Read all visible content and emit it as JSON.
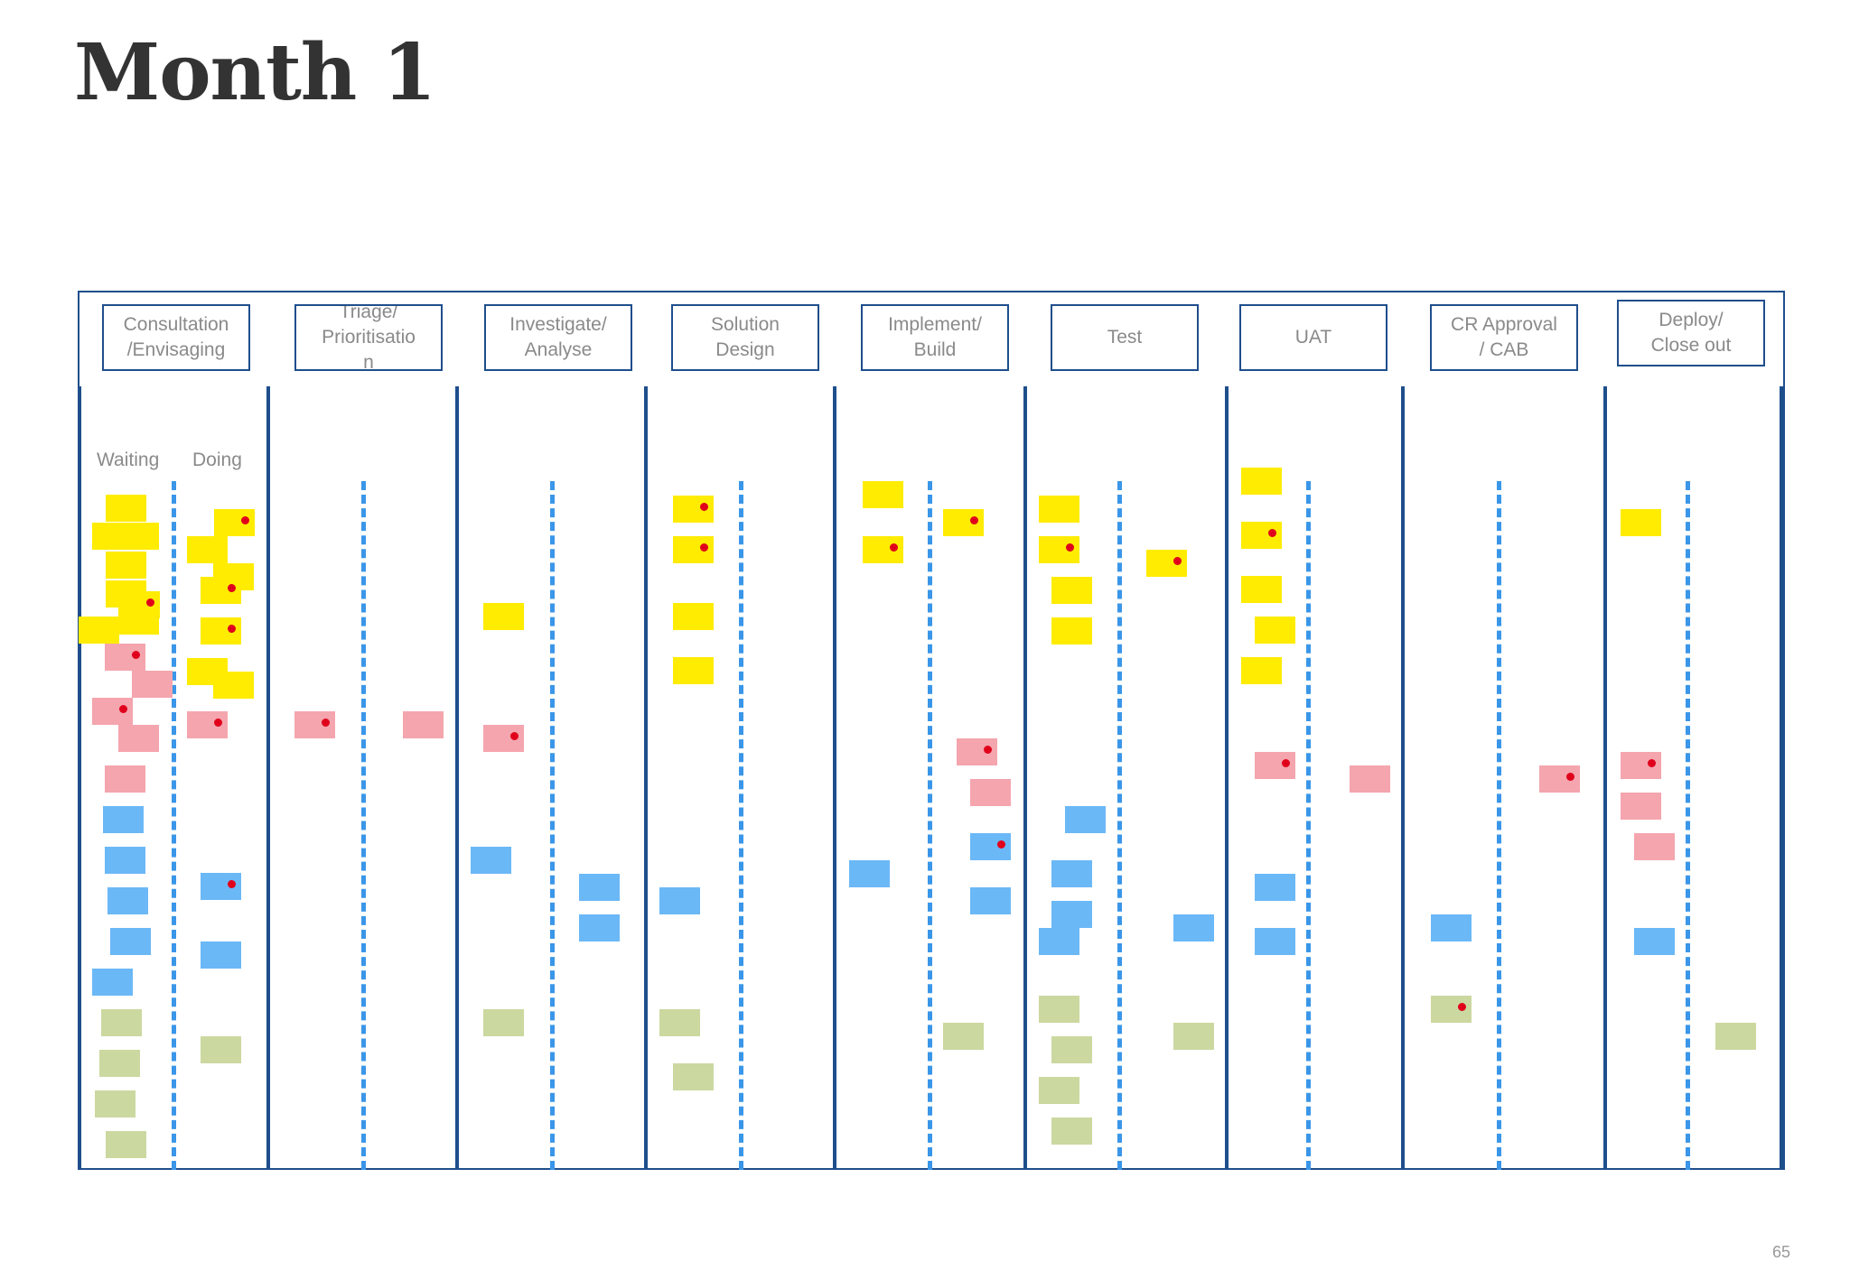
{
  "title": "Month 1",
  "page_number": "65",
  "colors": {
    "yellow": "#ffec00",
    "pink": "#f4a5ae",
    "blue": "#6bb8f7",
    "green": "#cbd8a0",
    "dot": "#e0001b",
    "border": "#1f4e8c",
    "dashed": "#3a96e8"
  },
  "columns": [
    {
      "label": "Consultation\n/Envisaging"
    },
    {
      "label": "Triage/\nPrioritisatio\nn"
    },
    {
      "label": "Investigate/\nAnalyse"
    },
    {
      "label": "Solution\nDesign"
    },
    {
      "label": "Implement/\nBuild"
    },
    {
      "label": "Test"
    },
    {
      "label": "UAT"
    },
    {
      "label": "CR Approval\n/ CAB"
    },
    {
      "label": "Deploy/\nClose out"
    }
  ],
  "sub_columns": {
    "waiting": "Waiting",
    "doing": "Doing"
  }
}
